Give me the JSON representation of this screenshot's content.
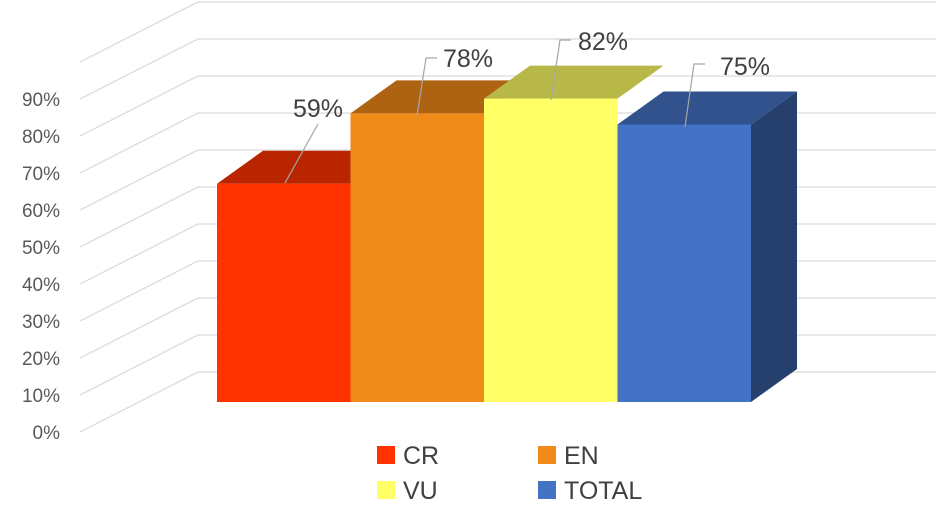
{
  "chart_data": {
    "type": "bar",
    "categories": [
      "CR",
      "EN",
      "VU",
      "TOTAL"
    ],
    "values": [
      59,
      78,
      82,
      75
    ],
    "data_labels": [
      "59%",
      "78%",
      "82%",
      "75%"
    ],
    "colors": [
      "#FF3300",
      "#F08A19",
      "#FFFF66",
      "#4472C4"
    ],
    "title": "",
    "xlabel": "",
    "ylabel": "",
    "ylim": [
      0,
      100
    ],
    "yticks": [
      "0%",
      "10%",
      "20%",
      "30%",
      "40%",
      "50%",
      "60%",
      "70%",
      "80%",
      "90%"
    ],
    "grid": true,
    "three_d": true,
    "legend_position": "bottom"
  }
}
